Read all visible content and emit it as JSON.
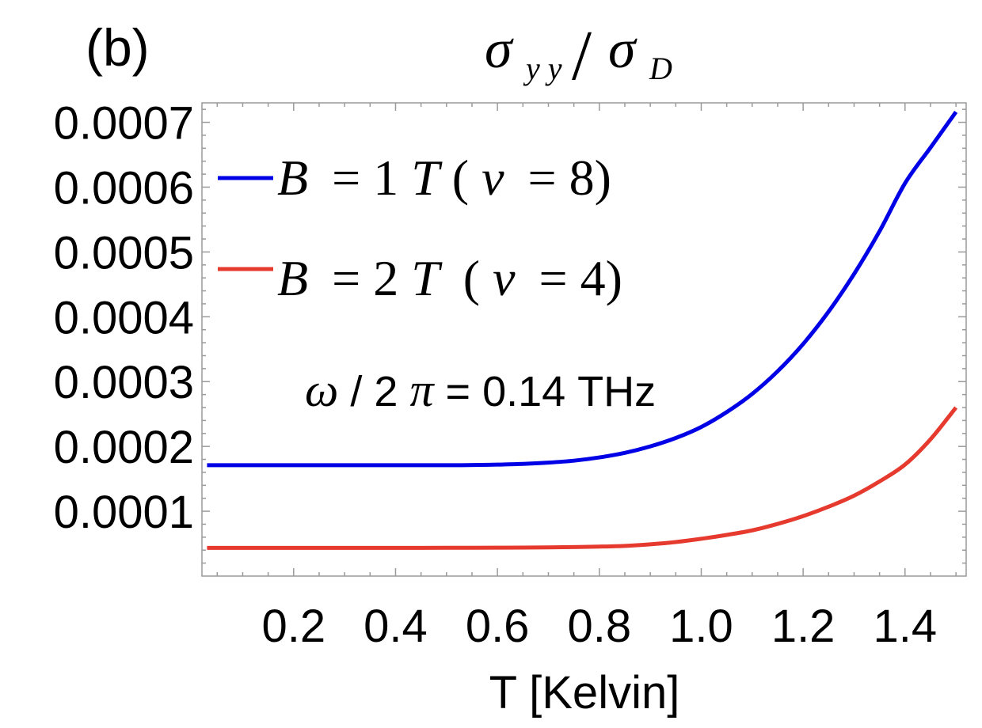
{
  "panel_label": "(b)",
  "chart_data": {
    "type": "line",
    "title": {
      "sigma": "σ",
      "num_sub": "y y",
      "slash": "/",
      "den_sub": "D"
    },
    "xlabel": "T [Kelvin]",
    "ylabel": "",
    "xlim": [
      0.02,
      1.52
    ],
    "ylim": [
      0.0,
      0.00073
    ],
    "x_ticks": [
      0.2,
      0.4,
      0.6,
      0.8,
      1.0,
      1.2,
      1.4
    ],
    "x_tick_labels": [
      "0.2",
      "0.4",
      "0.6",
      "0.8",
      "1.0",
      "1.2",
      "1.4"
    ],
    "y_ticks": [
      0.0001,
      0.0002,
      0.0003,
      0.0004,
      0.0005,
      0.0006,
      0.0007
    ],
    "y_tick_labels": [
      "0.0001",
      "0.0002",
      "0.0003",
      "0.0004",
      "0.0005",
      "0.0006",
      "0.0007"
    ],
    "grid": false,
    "legend_position": "top-left",
    "series": [
      {
        "name": "B = 1T(ν = 8)",
        "legend": {
          "B": "B",
          "eq": "= 1",
          "T": "T",
          "nu_open": "(",
          "nu": "ν",
          "nu_rest": "= 8)"
        },
        "color": "#0000e6",
        "x": [
          0.03,
          0.1,
          0.2,
          0.3,
          0.4,
          0.5,
          0.6,
          0.65,
          0.7,
          0.75,
          0.8,
          0.85,
          0.9,
          0.95,
          1.0,
          1.05,
          1.1,
          1.15,
          1.2,
          1.25,
          1.3,
          1.35,
          1.4,
          1.45,
          1.5
        ],
        "y": [
          0.000171,
          0.000171,
          0.000171,
          0.000171,
          0.000171,
          0.000171,
          0.000172,
          0.000173,
          0.000175,
          0.000178,
          0.000183,
          0.00019,
          0.0002,
          0.000213,
          0.00023,
          0.000253,
          0.000281,
          0.000316,
          0.000358,
          0.000408,
          0.000466,
          0.000532,
          0.000606,
          0.000661,
          0.000716
        ]
      },
      {
        "name": "B = 2T (ν = 4)",
        "legend": {
          "B": "B",
          "eq": "= 2",
          "T": "T",
          "nu_open": "(",
          "nu": "ν",
          "nu_rest": "= 4)"
        },
        "color": "#e63a2e",
        "x": [
          0.03,
          0.1,
          0.2,
          0.3,
          0.4,
          0.5,
          0.6,
          0.7,
          0.8,
          0.85,
          0.9,
          0.95,
          1.0,
          1.05,
          1.1,
          1.15,
          1.2,
          1.25,
          1.3,
          1.35,
          1.4,
          1.45,
          1.5
        ],
        "y": [
          4.35e-05,
          4.35e-05,
          4.35e-05,
          4.35e-05,
          4.35e-05,
          4.36e-05,
          4.38e-05,
          4.43e-05,
          4.55e-05,
          4.66e-05,
          4.9e-05,
          5.25e-05,
          5.75e-05,
          6.35e-05,
          7.05e-05,
          8.05e-05,
          9.25e-05,
          0.000107,
          0.000124,
          0.000146,
          0.000172,
          0.000211,
          0.00026
        ]
      }
    ],
    "annotation": {
      "omega": "ω",
      "slash2": "/ 2",
      "pi": "π",
      "rest": "= 0.14 THz"
    }
  }
}
